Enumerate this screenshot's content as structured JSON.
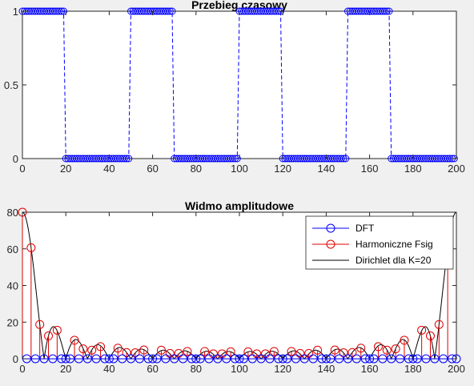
{
  "colors": {
    "figure_bg": "#f0f0f0",
    "axes_bg": "#ffffff",
    "dft": "#0000ff",
    "harmonics": "#e00000",
    "dirichlet": "#000000",
    "square_wave": "#0000ff"
  },
  "chart_data": [
    {
      "type": "scatter",
      "title": "Przebieg czasowy",
      "xlabel": "",
      "ylabel": "",
      "xlim": [
        0,
        200
      ],
      "ylim": [
        0,
        1
      ],
      "xticks": [
        0,
        20,
        40,
        60,
        80,
        100,
        120,
        140,
        160,
        180,
        200
      ],
      "yticks": [
        0,
        0.5,
        1
      ],
      "ytick_labels": [
        "0",
        "0.5",
        "1"
      ],
      "grid": false,
      "series": [
        {
          "style": "blue circle markers joined by dashed line",
          "segments": [
            {
              "x_start": 0,
              "x_end": 20,
              "value": 1
            },
            {
              "x_start": 20,
              "x_end": 50,
              "value": 0
            },
            {
              "x_start": 50,
              "x_end": 70,
              "value": 1
            },
            {
              "x_start": 70,
              "x_end": 100,
              "value": 0
            },
            {
              "x_start": 100,
              "x_end": 120,
              "value": 1
            },
            {
              "x_start": 120,
              "x_end": 150,
              "value": 0
            },
            {
              "x_start": 150,
              "x_end": 170,
              "value": 1
            },
            {
              "x_start": 170,
              "x_end": 200,
              "value": 0
            }
          ]
        }
      ]
    },
    {
      "type": "line",
      "title": "Widmo amplitudowe",
      "xlabel": "",
      "ylabel": "",
      "xlim": [
        0,
        200
      ],
      "ylim": [
        0,
        80
      ],
      "xticks": [
        0,
        20,
        40,
        60,
        80,
        100,
        120,
        140,
        160,
        180,
        200
      ],
      "yticks": [
        0,
        20,
        40,
        60,
        80
      ],
      "grid": false,
      "legend_position": "top-right",
      "series": [
        {
          "name": "DFT",
          "style": "blue circle markers joined by line",
          "x_range": [
            0,
            200
          ],
          "value": 0
        },
        {
          "name": "Harmoniczne Fsig",
          "style": "red stem markers",
          "x": [
            0,
            4,
            8,
            12,
            16,
            24,
            28,
            32,
            36,
            44,
            48,
            52,
            56,
            64,
            68,
            72,
            76,
            84,
            88,
            92,
            96,
            104,
            108,
            112,
            116,
            124,
            128,
            132,
            136,
            144,
            148,
            152,
            156,
            164,
            168,
            172,
            176,
            184,
            188,
            192,
            196
          ],
          "values": [
            80,
            60.6,
            18.7,
            12.5,
            15.6,
            10.1,
            5.4,
            4.7,
            6.6,
            5.8,
            3.4,
            3.3,
            4.8,
            4.7,
            2.9,
            2.9,
            4.0,
            4.0,
            2.7,
            2.7,
            3.8,
            3.8,
            2.7,
            2.7,
            4.0,
            4.0,
            2.9,
            2.9,
            4.7,
            4.8,
            3.3,
            3.4,
            5.8,
            6.6,
            4.7,
            5.4,
            10.1,
            15.6,
            12.5,
            18.7,
            60.6
          ]
        },
        {
          "name": "Dirichlet dla K=20",
          "style": "black solid line",
          "function": "|sin(pi*K*f/N)/sin(pi*f/N)|",
          "K": 20,
          "N": 200
        }
      ]
    }
  ]
}
